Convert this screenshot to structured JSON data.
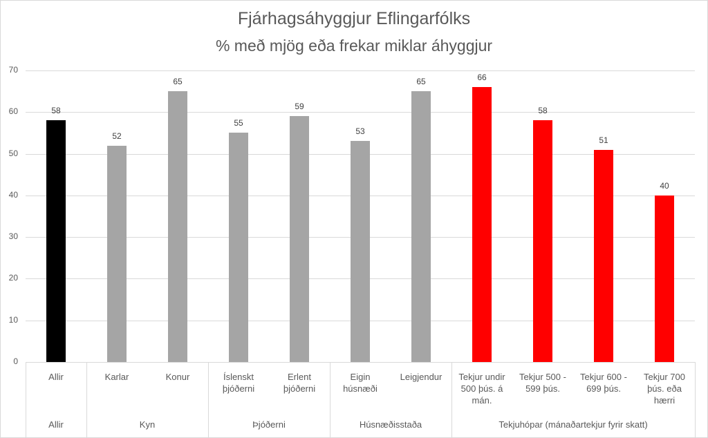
{
  "chart_data": {
    "type": "bar",
    "title": "Fjárhagsáhyggjur Eflingarfólks",
    "subtitle": "% með mjög eða frekar miklar áhyggjur",
    "xlabel": "",
    "ylabel": "",
    "ylim": [
      0,
      70
    ],
    "yticks": [
      0,
      10,
      20,
      30,
      40,
      50,
      60,
      70
    ],
    "grid": true,
    "legend": "none",
    "categories": [
      "Allir",
      "Karlar",
      "Konur",
      "Íslenskt þjóðerni",
      "Erlent þjóðerni",
      "Eigin húsnæði",
      "Leigjendur",
      "Tekjur undir 500 þús. á mán.",
      "Tekjur 500 - 599 þús.",
      "Tekjur 600 - 699 þús.",
      "Tekjur 700 þús. eða hærri"
    ],
    "values": [
      58,
      52,
      65,
      55,
      59,
      53,
      65,
      66,
      58,
      51,
      40
    ],
    "bar_colors": [
      "#000000",
      "#a5a5a5",
      "#a5a5a5",
      "#a5a5a5",
      "#a5a5a5",
      "#a5a5a5",
      "#a5a5a5",
      "#ff0000",
      "#ff0000",
      "#ff0000",
      "#ff0000"
    ],
    "groups": [
      {
        "label": "Allir",
        "start": 0,
        "count": 1
      },
      {
        "label": "Kyn",
        "start": 1,
        "count": 2
      },
      {
        "label": "Þjóðerni",
        "start": 3,
        "count": 2
      },
      {
        "label": "Húsnæðisstaða",
        "start": 5,
        "count": 2
      },
      {
        "label": "Tekjuhópar (mánaðartekjur fyrir skatt)",
        "start": 7,
        "count": 4
      }
    ]
  },
  "category_lines": [
    [
      "Allir"
    ],
    [
      "Karlar"
    ],
    [
      "Konur"
    ],
    [
      "Íslenskt",
      "þjóðerni"
    ],
    [
      "Erlent",
      "þjóðerni"
    ],
    [
      "Eigin",
      "húsnæði"
    ],
    [
      "Leigjendur"
    ],
    [
      "Tekjur undir",
      "500 þús. á",
      "mán."
    ],
    [
      "Tekjur 500 -",
      "599 þús."
    ],
    [
      "Tekjur 600 -",
      "699 þús."
    ],
    [
      "Tekjur 700",
      "þús. eða",
      "hærri"
    ]
  ]
}
